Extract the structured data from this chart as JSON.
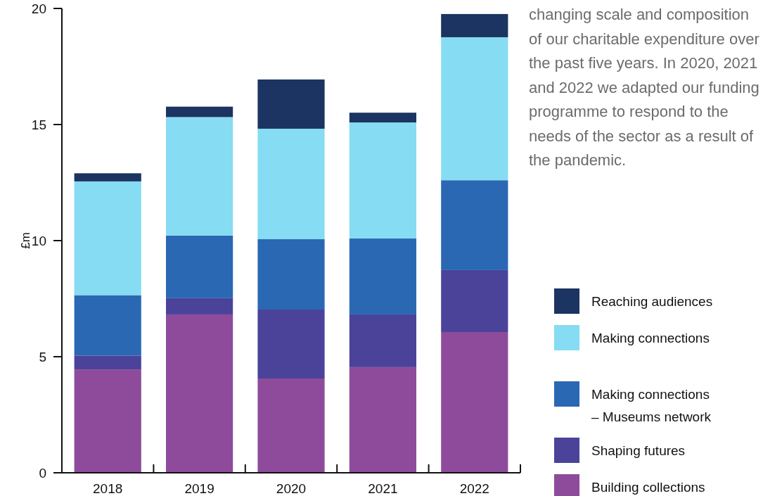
{
  "chart_data": {
    "type": "bar",
    "stacked": true,
    "ylabel": "£m",
    "categories": [
      "2018",
      "2019",
      "2020",
      "2021",
      "2022"
    ],
    "series": [
      {
        "name": "Building collections",
        "color": "#8e4b9b",
        "values": [
          4.45,
          6.82,
          4.06,
          4.55,
          6.06
        ]
      },
      {
        "name": "Shaping futures",
        "color": "#4a4399",
        "values": [
          0.6,
          0.7,
          2.97,
          2.27,
          2.67
        ]
      },
      {
        "name": "Making connections – Museums network",
        "color": "#2a68b3",
        "values": [
          2.6,
          2.7,
          3.03,
          3.27,
          3.87
        ]
      },
      {
        "name": "Making connections",
        "color": "#86dcf2",
        "values": [
          4.9,
          5.1,
          4.76,
          5.0,
          6.16
        ]
      },
      {
        "name": "Reaching audiences",
        "color": "#1b3461",
        "values": [
          0.35,
          0.45,
          2.12,
          0.42,
          1.0
        ]
      }
    ],
    "ylim": [
      0,
      20
    ],
    "yticks": [
      0,
      5,
      10,
      15,
      20
    ],
    "grid": false,
    "legend": "bottom right",
    "annotations": [
      "changing scale and composition of our charitable expenditure over the past five years. In 2020, 2021 and 2022 we adapted our funding programme to respond to the needs of the sector as a result of the pandemic."
    ]
  }
}
